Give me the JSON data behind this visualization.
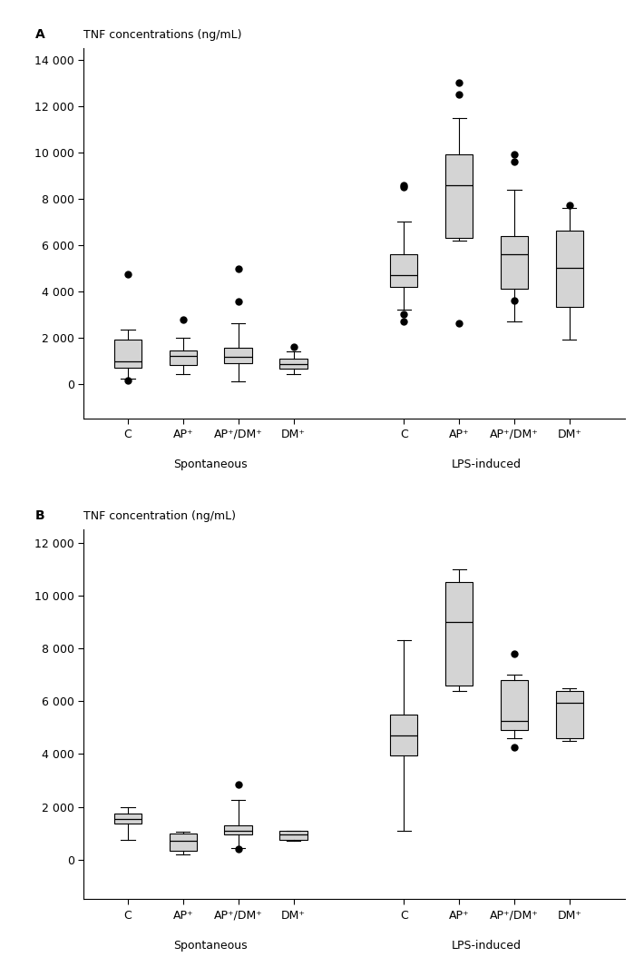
{
  "panel_A": {
    "title_label": "A",
    "ylabel": "TNF concentrations (ng/mL)",
    "ylim": [
      -1500,
      14500
    ],
    "yticks": [
      0,
      2000,
      4000,
      6000,
      8000,
      10000,
      12000,
      14000
    ],
    "ytick_labels": [
      "0",
      "2 000",
      "4 000",
      "6 000",
      "8 000",
      "10 000",
      "12 000",
      "14 000"
    ],
    "boxes": {
      "spont_C": {
        "q1": 700,
        "median": 950,
        "q3": 1900,
        "whislo": 200,
        "whishi": 2350,
        "fliers": [
          4750,
          150
        ]
      },
      "spont_AP": {
        "q1": 800,
        "median": 1200,
        "q3": 1450,
        "whislo": 400,
        "whishi": 2000,
        "fliers": [
          2750
        ]
      },
      "spont_APDM": {
        "q1": 900,
        "median": 1150,
        "q3": 1550,
        "whislo": 100,
        "whishi": 2600,
        "fliers": [
          3550,
          4950
        ]
      },
      "spont_DM": {
        "q1": 650,
        "median": 850,
        "q3": 1100,
        "whislo": 400,
        "whishi": 1400,
        "fliers": [
          1600
        ]
      },
      "lps_C": {
        "q1": 4200,
        "median": 4700,
        "q3": 5600,
        "whislo": 3200,
        "whishi": 7000,
        "fliers": [
          8500,
          8600,
          3000,
          2700
        ]
      },
      "lps_AP": {
        "q1": 6300,
        "median": 8600,
        "q3": 9900,
        "whislo": 6200,
        "whishi": 11500,
        "fliers": [
          13000,
          12500,
          2600
        ]
      },
      "lps_APDM": {
        "q1": 4100,
        "median": 5600,
        "q3": 6400,
        "whislo": 2700,
        "whishi": 8400,
        "fliers": [
          9900,
          9600,
          3600
        ]
      },
      "lps_DM": {
        "q1": 3300,
        "median": 5000,
        "q3": 6600,
        "whislo": 1900,
        "whishi": 7600,
        "fliers": [
          7700
        ]
      }
    }
  },
  "panel_B": {
    "title_label": "B",
    "ylabel": "TNF concentration (ng/mL)",
    "ylim": [
      -1500,
      12500
    ],
    "yticks": [
      0,
      2000,
      4000,
      6000,
      8000,
      10000,
      12000
    ],
    "ytick_labels": [
      "0",
      "2 000",
      "4 000",
      "6 000",
      "8 000",
      "10 000",
      "12 000"
    ],
    "boxes": {
      "spont_C": {
        "q1": 1350,
        "median": 1550,
        "q3": 1750,
        "whislo": 750,
        "whishi": 2000,
        "fliers": []
      },
      "spont_AP": {
        "q1": 350,
        "median": 700,
        "q3": 1000,
        "whislo": 200,
        "whishi": 1050,
        "fliers": []
      },
      "spont_APDM": {
        "q1": 950,
        "median": 1100,
        "q3": 1300,
        "whislo": 450,
        "whishi": 2250,
        "fliers": [
          2850,
          400
        ]
      },
      "spont_DM": {
        "q1": 750,
        "median": 950,
        "q3": 1100,
        "whislo": 700,
        "whishi": 1100,
        "fliers": []
      },
      "lps_C": {
        "q1": 3950,
        "median": 4700,
        "q3": 5500,
        "whislo": 1100,
        "whishi": 8300,
        "fliers": []
      },
      "lps_AP": {
        "q1": 6600,
        "median": 9000,
        "q3": 10500,
        "whislo": 6400,
        "whishi": 11000,
        "fliers": []
      },
      "lps_APDM": {
        "q1": 4900,
        "median": 5250,
        "q3": 6800,
        "whislo": 4600,
        "whishi": 7000,
        "fliers": [
          7800,
          4250
        ]
      },
      "lps_DM": {
        "q1": 4600,
        "median": 5950,
        "q3": 6400,
        "whislo": 4500,
        "whishi": 6500,
        "fliers": []
      }
    }
  },
  "box_facecolor": "#d4d4d4",
  "box_edgecolor": "#000000",
  "flier_color": "#000000",
  "flier_size": 5,
  "box_width": 0.5,
  "x_positions": [
    1,
    2,
    3,
    4,
    6,
    7,
    8,
    9
  ],
  "x_lim": [
    0.2,
    10.0
  ],
  "group_centers": [
    2.5,
    7.5
  ],
  "group_labels": [
    "Spontaneous",
    "LPS-induced"
  ],
  "categories": [
    "C",
    "AP⁺",
    "AP⁺/DM⁺",
    "DM⁺"
  ],
  "background_color": "#ffffff",
  "font_size_panel_label": 10,
  "font_size_ylabel": 9,
  "font_size_tick": 9,
  "font_size_group": 9
}
